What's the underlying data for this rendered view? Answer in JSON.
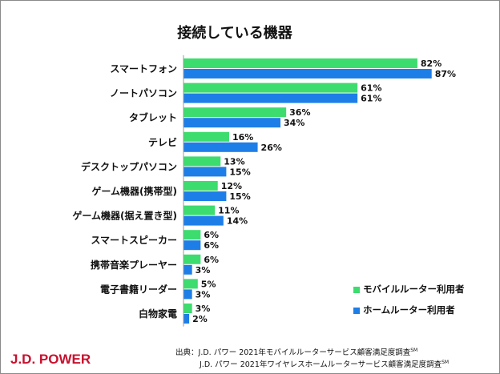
{
  "chart_data": {
    "type": "bar",
    "orientation": "horizontal",
    "title": "接続している機器",
    "categories": [
      "スマートフォン",
      "ノートパソコン",
      "タブレット",
      "テレビ",
      "デスクトップパソコン",
      "ゲーム機器(携帯型)",
      "ゲーム機器(据え置き型)",
      "スマートスピーカー",
      "携帯音楽プレーヤー",
      "電子書籍リーダー",
      "白物家電"
    ],
    "series": [
      {
        "name": "モバイルルーター利用者",
        "color": "#3ddc6e",
        "values": [
          82,
          61,
          36,
          16,
          13,
          12,
          11,
          6,
          6,
          5,
          3
        ]
      },
      {
        "name": "ホームルーター利用者",
        "color": "#1e7ee8",
        "values": [
          87,
          61,
          34,
          26,
          15,
          15,
          14,
          6,
          3,
          3,
          2
        ]
      }
    ],
    "value_suffix": "%",
    "xlim": [
      0,
      100
    ],
    "legend_position": "bottom-right"
  },
  "footer": {
    "logo": "J.D. POWER",
    "source_prefix": "出典：",
    "source_line1": "J.D. パワー 2021年モバイルルーターサービス顧客満足度調査",
    "source_line2": "J.D. パワー 2021年ワイヤレスホームルーターサービス顧客満足度調査",
    "sm": "SM"
  }
}
